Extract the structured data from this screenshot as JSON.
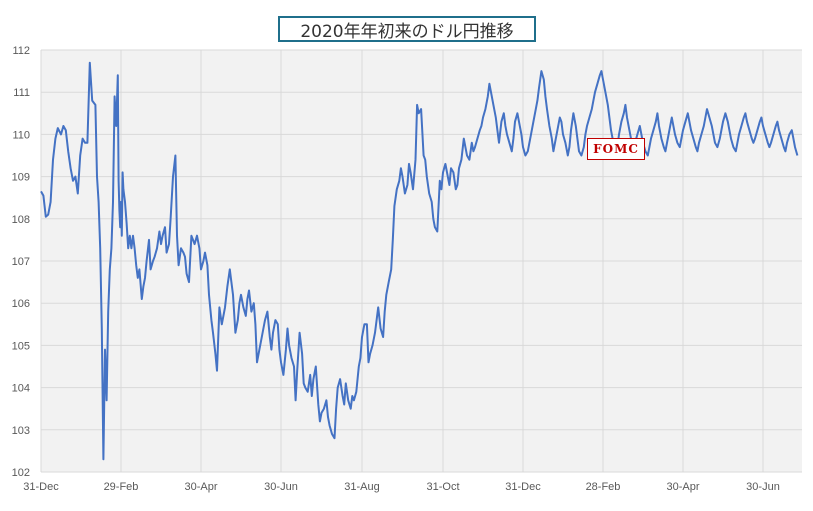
{
  "chart_data": {
    "type": "line",
    "title": "2020年年初来のドル円推移",
    "xlabel": "",
    "ylabel": "",
    "ylim": [
      102,
      112
    ],
    "yticks": [
      102,
      103,
      104,
      105,
      106,
      107,
      108,
      109,
      110,
      111,
      112
    ],
    "xticks": [
      "31-Dec",
      "29-Feb",
      "30-Apr",
      "30-Jun",
      "31-Aug",
      "31-Oct",
      "31-Dec",
      "28-Feb",
      "30-Apr",
      "30-Jun"
    ],
    "grid": true,
    "annotations": [
      {
        "text": "FOMC",
        "x_tick": "28-Feb"
      }
    ],
    "colors": {
      "line": "#4472c4",
      "plot_bg": "#f2f2f2",
      "grid": "#d9d9d9",
      "annotation": "#c00000",
      "title_border": "#1f6f8b"
    },
    "series": [
      {
        "x_tick_position": [
          0,
          0.03,
          0.06,
          0.09,
          0.12,
          0.15,
          0.18,
          0.21,
          0.25,
          0.28,
          0.31,
          0.34,
          0.37,
          0.4,
          0.43,
          0.46,
          0.49,
          0.52,
          0.55,
          0.58,
          0.61,
          0.64,
          0.68,
          0.7,
          0.72,
          0.74,
          0.76,
          0.78,
          0.8,
          0.82,
          0.84,
          0.86,
          0.88,
          0.9,
          0.92,
          0.94,
          0.96,
          0.97,
          0.98,
          0.99,
          1,
          1.01,
          1.02,
          1.03,
          1.05,
          1.07,
          1.09,
          1.11,
          1.13,
          1.15,
          1.17,
          1.19,
          1.21,
          1.23,
          1.26,
          1.28,
          1.3,
          1.32,
          1.35,
          1.37,
          1.4,
          1.42,
          1.45,
          1.48,
          1.5,
          1.52,
          1.55,
          1.57,
          1.6,
          1.62,
          1.65,
          1.68,
          1.7,
          1.72,
          1.75,
          1.78,
          1.8,
          1.82,
          1.85,
          1.88,
          1.9,
          1.92,
          1.95,
          1.98,
          2,
          2.03,
          2.05,
          2.08,
          2.1,
          2.13,
          2.15,
          2.18,
          2.2,
          2.23,
          2.26,
          2.28,
          2.3,
          2.33,
          2.36,
          2.38,
          2.4,
          2.43,
          2.46,
          2.48,
          2.5,
          2.53,
          2.56,
          2.58,
          2.6,
          2.63,
          2.66,
          2.68,
          2.7,
          2.73,
          2.76,
          2.78,
          2.8,
          2.83,
          2.86,
          2.88,
          2.9,
          2.93,
          2.96,
          2.98,
          3,
          3.03,
          3.06,
          3.08,
          3.1,
          3.13,
          3.16,
          3.18,
          3.2,
          3.23,
          3.26,
          3.28,
          3.3,
          3.33,
          3.36,
          3.38,
          3.4,
          3.43,
          3.46,
          3.48,
          3.5,
          3.53,
          3.56,
          3.58,
          3.6,
          3.63,
          3.66,
          3.68,
          3.7,
          3.73,
          3.76,
          3.78,
          3.8,
          3.83,
          3.86,
          3.88,
          3.9,
          3.93,
          3.96,
          3.98,
          4,
          4.03,
          4.06,
          4.08,
          4.1,
          4.13,
          4.16,
          4.18,
          4.2,
          4.23,
          4.26,
          4.28,
          4.3,
          4.33,
          4.36,
          4.38,
          4.4,
          4.43,
          4.46,
          4.48,
          4.5,
          4.53,
          4.56,
          4.58,
          4.6,
          4.63,
          4.66,
          4.68,
          4.7,
          4.73,
          4.76,
          4.78,
          4.8,
          4.83,
          4.86,
          4.88,
          4.9,
          4.93,
          4.96,
          4.98,
          5,
          5.03,
          5.06,
          5.08,
          5.1,
          5.13,
          5.16,
          5.18,
          5.2,
          5.23,
          5.26,
          5.28,
          5.3,
          5.33,
          5.36,
          5.38,
          5.4,
          5.43,
          5.46,
          5.48,
          5.5,
          5.53,
          5.56,
          5.58,
          5.6,
          5.63,
          5.66,
          5.68,
          5.7,
          5.73,
          5.76,
          5.78,
          5.8,
          5.83,
          5.86,
          5.88,
          5.9,
          5.93,
          5.96,
          5.98,
          6,
          6.03,
          6.06,
          6.08,
          6.1,
          6.13,
          6.16,
          6.18,
          6.2,
          6.23,
          6.26,
          6.28,
          6.3,
          6.33,
          6.36,
          6.38,
          6.4,
          6.43,
          6.46,
          6.48,
          6.5,
          6.53,
          6.56,
          6.58,
          6.6,
          6.63,
          6.66,
          6.68,
          6.7,
          6.73,
          6.76,
          6.78,
          6.8,
          6.83,
          6.86,
          6.88,
          6.9,
          6.93,
          6.96,
          6.98,
          7,
          7.03,
          7.06,
          7.08,
          7.1,
          7.13,
          7.16,
          7.18,
          7.2,
          7.23,
          7.26,
          7.28,
          7.3,
          7.33,
          7.36,
          7.38,
          7.4,
          7.43,
          7.46,
          7.48,
          7.5,
          7.53,
          7.56,
          7.58,
          7.6,
          7.63,
          7.66,
          7.68,
          7.7,
          7.73,
          7.76,
          7.78,
          7.8,
          7.83,
          7.86,
          7.88,
          7.9,
          7.93,
          7.96,
          7.98,
          8,
          8.03,
          8.06,
          8.08,
          8.1,
          8.13,
          8.16,
          8.18,
          8.2,
          8.23,
          8.26,
          8.28,
          8.3,
          8.33,
          8.36,
          8.38,
          8.4,
          8.43,
          8.46,
          8.48,
          8.5,
          8.53,
          8.56,
          8.58,
          8.6,
          8.63,
          8.66,
          8.68,
          8.7,
          8.73,
          8.76,
          8.78,
          8.8,
          8.83,
          8.86,
          8.88,
          8.9,
          8.93,
          8.96,
          8.98,
          9,
          9.03,
          9.06,
          9.08,
          9.1,
          9.13,
          9.16,
          9.18,
          9.2,
          9.23,
          9.26,
          9.28,
          9.3,
          9.33,
          9.36,
          9.38,
          9.4,
          9.43,
          9.46,
          9.48
        ],
        "values": [
          108.65,
          108.55,
          108.05,
          108.1,
          108.4,
          109.4,
          109.9,
          110.15,
          110.0,
          110.2,
          110.1,
          109.6,
          109.2,
          108.9,
          109.0,
          108.6,
          109.5,
          109.9,
          109.8,
          109.8,
          111.7,
          110.8,
          110.7,
          109.0,
          108.4,
          107.3,
          105.4,
          102.3,
          104.9,
          103.7,
          105.8,
          106.8,
          107.3,
          108.4,
          110.9,
          110.2,
          111.4,
          108.9,
          108.2,
          107.8,
          108.4,
          107.6,
          109.1,
          108.7,
          108.4,
          107.9,
          107.3,
          107.6,
          107.3,
          107.6,
          107.3,
          106.9,
          106.6,
          106.8,
          106.1,
          106.4,
          106.6,
          107.0,
          107.5,
          106.8,
          107.0,
          107.1,
          107.3,
          107.7,
          107.4,
          107.6,
          107.8,
          107.2,
          107.4,
          108.0,
          109.0,
          109.5,
          107.6,
          106.9,
          107.3,
          107.2,
          107.1,
          106.7,
          106.5,
          107.6,
          107.5,
          107.4,
          107.6,
          107.3,
          106.8,
          107.0,
          107.2,
          106.9,
          106.2,
          105.6,
          105.3,
          104.8,
          104.4,
          105.9,
          105.5,
          105.7,
          105.9,
          106.4,
          106.8,
          106.5,
          106.2,
          105.3,
          105.6,
          106.0,
          106.2,
          105.9,
          105.7,
          106.1,
          106.3,
          105.8,
          106.0,
          105.5,
          104.6,
          104.9,
          105.2,
          105.4,
          105.6,
          105.8,
          105.2,
          104.9,
          105.3,
          105.6,
          105.5,
          104.9,
          104.6,
          104.3,
          104.9,
          105.4,
          105.0,
          104.7,
          104.5,
          103.7,
          104.4,
          105.3,
          104.8,
          104.1,
          104.0,
          103.9,
          104.3,
          103.8,
          104.2,
          104.5,
          103.6,
          103.2,
          103.4,
          103.5,
          103.7,
          103.3,
          103.1,
          102.9,
          102.8,
          103.5,
          104.0,
          104.2,
          103.8,
          103.6,
          104.1,
          103.7,
          103.5,
          103.8,
          103.7,
          103.9,
          104.5,
          104.7,
          105.2,
          105.5,
          105.5,
          104.6,
          104.8,
          105.0,
          105.3,
          105.6,
          105.9,
          105.4,
          105.2,
          105.8,
          106.2,
          106.5,
          106.8,
          107.5,
          108.3,
          108.7,
          108.9,
          109.2,
          109.0,
          108.6,
          108.8,
          109.3,
          109.1,
          108.7,
          109.4,
          110.7,
          110.5,
          110.6,
          109.5,
          109.4,
          109.0,
          108.6,
          108.4,
          108.0,
          107.8,
          107.7,
          108.9,
          108.7,
          109.1,
          109.3,
          109.0,
          108.8,
          109.2,
          109.1,
          108.7,
          108.8,
          109.2,
          109.4,
          109.9,
          109.7,
          109.5,
          109.4,
          109.8,
          109.6,
          109.7,
          109.9,
          110.1,
          110.2,
          110.4,
          110.6,
          110.9,
          111.2,
          111.0,
          110.7,
          110.4,
          110.1,
          109.8,
          110.3,
          110.5,
          110.2,
          110.0,
          109.8,
          109.6,
          109.9,
          110.3,
          110.5,
          110.2,
          110.0,
          109.7,
          109.5,
          109.6,
          109.8,
          110.0,
          110.3,
          110.6,
          110.8,
          111.1,
          111.5,
          111.3,
          110.9,
          110.6,
          110.2,
          109.9,
          109.6,
          109.8,
          110.1,
          110.4,
          110.3,
          110.0,
          109.8,
          109.5,
          109.7,
          110.1,
          110.5,
          110.2,
          109.9,
          109.6,
          109.5,
          109.7,
          110.0,
          110.2,
          110.4,
          110.6,
          110.8,
          111.0,
          111.2,
          111.4,
          111.5,
          111.3,
          111.0,
          110.7,
          110.4,
          110.1,
          109.8,
          109.6,
          109.7,
          110.0,
          110.3,
          110.5,
          110.7,
          110.4,
          110.1,
          109.8,
          109.6,
          109.8,
          110.0,
          110.2,
          110.0,
          109.8,
          109.6,
          109.5,
          109.7,
          109.9,
          110.1,
          110.3,
          110.5,
          110.2,
          109.9,
          109.7,
          109.6,
          109.8,
          110.1,
          110.4,
          110.2,
          110.0,
          109.8,
          109.7,
          109.9,
          110.1,
          110.3,
          110.5,
          110.3,
          110.1,
          109.9,
          109.7,
          109.6,
          109.8,
          110.0,
          110.2,
          110.4,
          110.6,
          110.4,
          110.2,
          110.0,
          109.8,
          109.7,
          109.9,
          110.1,
          110.3,
          110.5,
          110.3,
          110.1,
          109.9,
          109.7,
          109.6,
          109.8,
          110.0,
          110.2,
          110.4,
          110.5,
          110.3,
          110.1,
          109.9,
          109.8,
          109.9,
          110.1,
          110.3,
          110.4,
          110.2,
          110.0,
          109.8,
          109.7,
          109.8,
          110.0,
          110.2,
          110.3,
          110.1,
          109.9,
          109.7,
          109.6,
          109.8,
          110.0,
          110.1,
          109.9,
          109.7,
          109.5
        ]
      }
    ]
  }
}
